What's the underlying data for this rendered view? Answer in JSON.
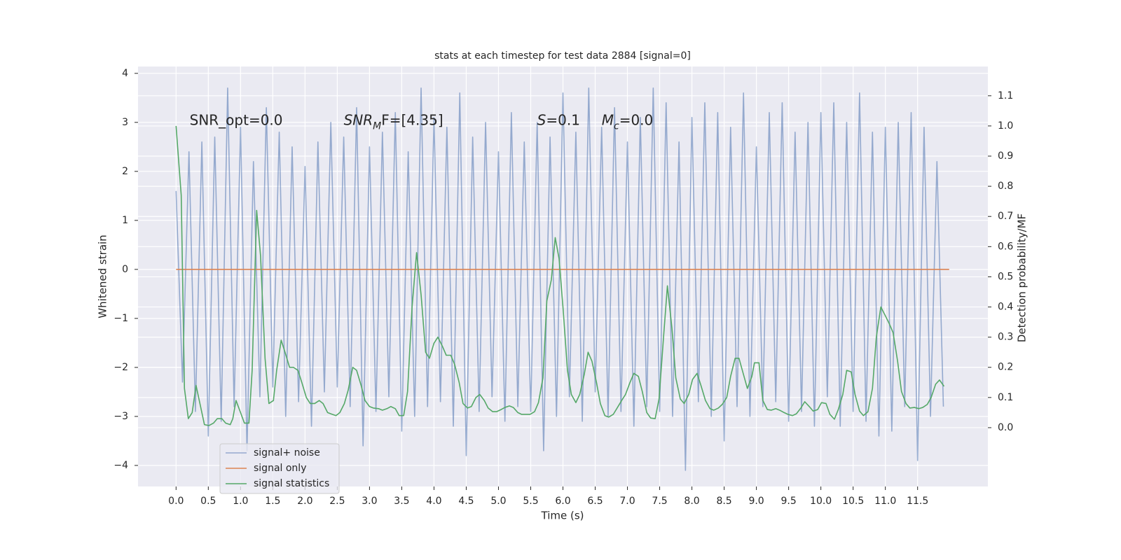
{
  "chart_data": {
    "type": "line",
    "title": "stats at each timestep for test data 2884 [signal=0]",
    "x_label": "Time (s)",
    "y_label": "Whitened strain",
    "y2_label": "Detection probability/MF",
    "xlim": [
      -0.59,
      12.59
    ],
    "ylim": [
      -4.43,
      4.14
    ],
    "y2lim": [
      -0.195,
      1.197
    ],
    "grid": true,
    "legend": "lower left",
    "background": "#eaeaf2",
    "xticks": [
      {
        "value": 0,
        "label": "0.0"
      },
      0.5,
      {
        "value": 1,
        "label": "1.0"
      },
      1.5,
      {
        "value": 2,
        "label": "2.0"
      },
      2.5,
      {
        "value": 3,
        "label": "3.0"
      },
      3.5,
      {
        "value": 4,
        "label": "4.0"
      },
      4.5,
      {
        "value": 5,
        "label": "5.0"
      },
      5.5,
      {
        "value": 6,
        "label": "6.0"
      },
      6.5,
      {
        "value": 7,
        "label": "7.0"
      },
      7.5,
      {
        "value": 8,
        "label": "8.0"
      },
      8.5,
      {
        "value": 9,
        "label": "9.0"
      },
      9.5,
      {
        "value": 10,
        "label": "10.0"
      },
      10.5,
      {
        "value": 11,
        "label": "11.0"
      },
      11.5
    ],
    "yticks": [
      {
        "value": -4,
        "label": "−4"
      },
      {
        "value": -3,
        "label": "−3"
      },
      {
        "value": -2,
        "label": "−2"
      },
      {
        "value": -1,
        "label": "−1"
      },
      0,
      1,
      2,
      3,
      4
    ],
    "y2ticks": [
      {
        "value": 0,
        "label": "0.0"
      },
      0.1,
      0.2,
      0.3,
      0.4,
      0.5,
      0.6,
      0.7,
      0.8,
      0.9,
      {
        "value": 1,
        "label": "1.0"
      },
      1.1
    ],
    "annotations": [
      [
        {
          "text": "SNR_opt=0.0"
        }
      ],
      [
        {
          "text": "SNR",
          "italic": true
        },
        {
          "text": "M",
          "italic": true,
          "sub": true
        },
        {
          "text": "F=[4.35]"
        }
      ],
      [
        {
          "text": "S",
          "italic": true
        },
        {
          "text": "=0.1"
        }
      ],
      [
        {
          "text": "M",
          "italic": true
        },
        {
          "text": "c",
          "italic": true,
          "sub": true
        },
        {
          "text": "=0.0"
        }
      ]
    ],
    "series": [
      {
        "name": "signal+ noise",
        "color": "#4c72b0",
        "opacity": 0.55,
        "x": [
          0,
          0.1,
          0.2,
          0.3,
          0.4,
          0.5,
          0.6,
          0.7,
          0.8,
          0.9,
          1,
          1.1,
          1.2,
          1.3,
          1.4,
          1.5,
          1.6,
          1.7,
          1.8,
          1.9,
          2,
          2.1,
          2.2,
          2.3,
          2.4,
          2.5,
          2.6,
          2.7,
          2.8,
          2.9,
          3,
          3.1,
          3.2,
          3.3,
          3.4,
          3.5,
          3.6,
          3.7,
          3.8,
          3.9,
          4,
          4.1,
          4.2,
          4.3,
          4.4,
          4.5,
          4.6,
          4.7,
          4.8,
          4.9,
          5,
          5.1,
          5.2,
          5.3,
          5.4,
          5.5,
          5.6,
          5.7,
          5.8,
          5.9,
          6,
          6.1,
          6.2,
          6.3,
          6.4,
          6.5,
          6.6,
          6.7,
          6.8,
          6.9,
          7,
          7.1,
          7.2,
          7.3,
          7.4,
          7.5,
          7.6,
          7.7,
          7.8,
          7.9,
          8,
          8.1,
          8.2,
          8.3,
          8.4,
          8.5,
          8.6,
          8.7,
          8.8,
          8.9,
          9,
          9.1,
          9.2,
          9.3,
          9.4,
          9.5,
          9.6,
          9.7,
          9.8,
          9.9,
          10,
          10.1,
          10.2,
          10.3,
          10.4,
          10.5,
          10.6,
          10.7,
          10.8,
          10.9,
          11,
          11.1,
          11.2,
          11.3,
          11.4,
          11.5,
          11.6,
          11.7,
          11.8,
          11.9
        ],
        "values": [
          1.6,
          -2.3,
          2.4,
          -2.9,
          2.6,
          -3.4,
          2.7,
          -3.1,
          3.7,
          -2.8,
          2.9,
          -3.7,
          2.2,
          -2.6,
          3.3,
          -2.4,
          2.8,
          -3.0,
          2.5,
          -2.7,
          2.1,
          -3.2,
          2.6,
          -2.5,
          3.0,
          -2.4,
          2.7,
          -2.8,
          3.3,
          -3.6,
          2.5,
          -2.9,
          2.8,
          -2.6,
          3.2,
          -3.3,
          2.4,
          -3.0,
          3.7,
          -2.8,
          3.1,
          -2.7,
          2.9,
          -3.2,
          3.6,
          -3.8,
          2.7,
          -2.9,
          3.0,
          -2.6,
          2.4,
          -3.1,
          3.2,
          -2.8,
          2.6,
          -2.9,
          3.0,
          -3.7,
          2.7,
          -3.0,
          3.6,
          -2.6,
          2.8,
          -3.1,
          3.7,
          -2.5,
          2.9,
          -3.0,
          3.3,
          -2.9,
          2.6,
          -3.2,
          3.1,
          -2.8,
          3.7,
          -2.9,
          3.4,
          -3.0,
          2.6,
          -4.1,
          3.1,
          -2.7,
          3.4,
          -3.0,
          3.2,
          -3.5,
          2.9,
          -2.8,
          3.6,
          -3.0,
          2.5,
          -2.8,
          3.2,
          -2.7,
          3.4,
          -3.1,
          2.8,
          -2.9,
          3.0,
          -3.2,
          3.2,
          -2.6,
          3.4,
          -3.2,
          3.0,
          -2.9,
          3.6,
          -3.1,
          2.8,
          -3.4,
          2.9,
          -3.3,
          3.0,
          -2.8,
          3.2,
          -3.9,
          2.9,
          -3.0,
          2.2,
          -2.8
        ]
      },
      {
        "name": "signal only",
        "color": "#dd8452",
        "opacity": 1,
        "x": [
          0,
          11.99
        ],
        "values": [
          0,
          0
        ]
      },
      {
        "name": "signal statistics",
        "color": "#55a868",
        "opacity": 1,
        "axis": "y2",
        "x": [
          0,
          0.08,
          0.13,
          0.19,
          0.25,
          0.31,
          0.38,
          0.44,
          0.51,
          0.58,
          0.64,
          0.71,
          0.77,
          0.84,
          0.88,
          0.93,
          1.0,
          1.06,
          1.13,
          1.18,
          1.25,
          1.31,
          1.38,
          1.44,
          1.51,
          1.56,
          1.63,
          1.69,
          1.76,
          1.82,
          1.89,
          1.95,
          2.02,
          2.08,
          2.15,
          2.22,
          2.28,
          2.35,
          2.41,
          2.48,
          2.54,
          2.61,
          2.67,
          2.74,
          2.8,
          2.87,
          2.93,
          3.0,
          3.06,
          3.14,
          3.2,
          3.27,
          3.33,
          3.4,
          3.46,
          3.53,
          3.59,
          3.66,
          3.73,
          3.8,
          3.87,
          3.93,
          4.0,
          4.06,
          4.13,
          4.19,
          4.26,
          4.32,
          4.39,
          4.45,
          4.52,
          4.58,
          4.65,
          4.71,
          4.78,
          4.84,
          4.91,
          4.97,
          5.04,
          5.1,
          5.17,
          5.23,
          5.3,
          5.36,
          5.43,
          5.49,
          5.56,
          5.62,
          5.69,
          5.75,
          5.82,
          5.88,
          5.94,
          6.0,
          6.07,
          6.13,
          6.2,
          6.26,
          6.33,
          6.39,
          6.45,
          6.52,
          6.58,
          6.65,
          6.71,
          6.78,
          6.84,
          6.91,
          6.97,
          7.04,
          7.1,
          7.17,
          7.23,
          7.3,
          7.36,
          7.43,
          7.49,
          7.56,
          7.62,
          7.69,
          7.75,
          7.82,
          7.88,
          7.95,
          8.01,
          8.08,
          8.14,
          8.21,
          8.28,
          8.34,
          8.41,
          8.47,
          8.54,
          8.6,
          8.67,
          8.73,
          8.8,
          8.86,
          8.93,
          8.97,
          9.04,
          9.1,
          9.17,
          9.23,
          9.3,
          9.36,
          9.43,
          9.49,
          9.56,
          9.62,
          9.69,
          9.75,
          9.82,
          9.88,
          9.95,
          10.01,
          10.08,
          10.14,
          10.21,
          10.27,
          10.34,
          10.4,
          10.47,
          10.53,
          10.6,
          10.66,
          10.73,
          10.8,
          10.86,
          10.93,
          10.99,
          11.06,
          11.12,
          11.19,
          11.25,
          11.32,
          11.38,
          11.45,
          11.52,
          11.58,
          11.65,
          11.71,
          11.78,
          11.84,
          11.91
        ],
        "values": [
          1.0,
          0.77,
          0.13,
          0.03,
          0.05,
          0.14,
          0.07,
          0.01,
          0.007,
          0.015,
          0.03,
          0.03,
          0.015,
          0.01,
          0.03,
          0.09,
          0.05,
          0.015,
          0.015,
          0.19,
          0.72,
          0.57,
          0.23,
          0.08,
          0.09,
          0.19,
          0.29,
          0.25,
          0.2,
          0.2,
          0.19,
          0.15,
          0.1,
          0.08,
          0.08,
          0.09,
          0.08,
          0.05,
          0.045,
          0.04,
          0.05,
          0.08,
          0.125,
          0.2,
          0.19,
          0.14,
          0.09,
          0.07,
          0.065,
          0.063,
          0.058,
          0.063,
          0.07,
          0.063,
          0.04,
          0.04,
          0.12,
          0.4,
          0.58,
          0.44,
          0.25,
          0.23,
          0.28,
          0.3,
          0.27,
          0.24,
          0.24,
          0.21,
          0.15,
          0.08,
          0.065,
          0.07,
          0.1,
          0.11,
          0.09,
          0.065,
          0.053,
          0.053,
          0.06,
          0.067,
          0.072,
          0.067,
          0.05,
          0.044,
          0.044,
          0.044,
          0.053,
          0.083,
          0.165,
          0.42,
          0.49,
          0.63,
          0.56,
          0.4,
          0.19,
          0.11,
          0.083,
          0.11,
          0.176,
          0.25,
          0.22,
          0.15,
          0.08,
          0.04,
          0.035,
          0.044,
          0.065,
          0.09,
          0.11,
          0.15,
          0.18,
          0.17,
          0.12,
          0.05,
          0.032,
          0.03,
          0.095,
          0.3,
          0.47,
          0.33,
          0.165,
          0.095,
          0.08,
          0.11,
          0.16,
          0.18,
          0.14,
          0.09,
          0.063,
          0.058,
          0.065,
          0.077,
          0.1,
          0.17,
          0.23,
          0.23,
          0.176,
          0.13,
          0.17,
          0.215,
          0.215,
          0.09,
          0.06,
          0.058,
          0.063,
          0.058,
          0.05,
          0.044,
          0.04,
          0.046,
          0.065,
          0.086,
          0.07,
          0.055,
          0.06,
          0.083,
          0.08,
          0.044,
          0.028,
          0.06,
          0.11,
          0.19,
          0.185,
          0.11,
          0.055,
          0.04,
          0.053,
          0.13,
          0.3,
          0.4,
          0.375,
          0.345,
          0.315,
          0.22,
          0.12,
          0.08,
          0.065,
          0.067,
          0.063,
          0.067,
          0.077,
          0.1,
          0.144,
          0.158,
          0.137
        ]
      }
    ]
  }
}
